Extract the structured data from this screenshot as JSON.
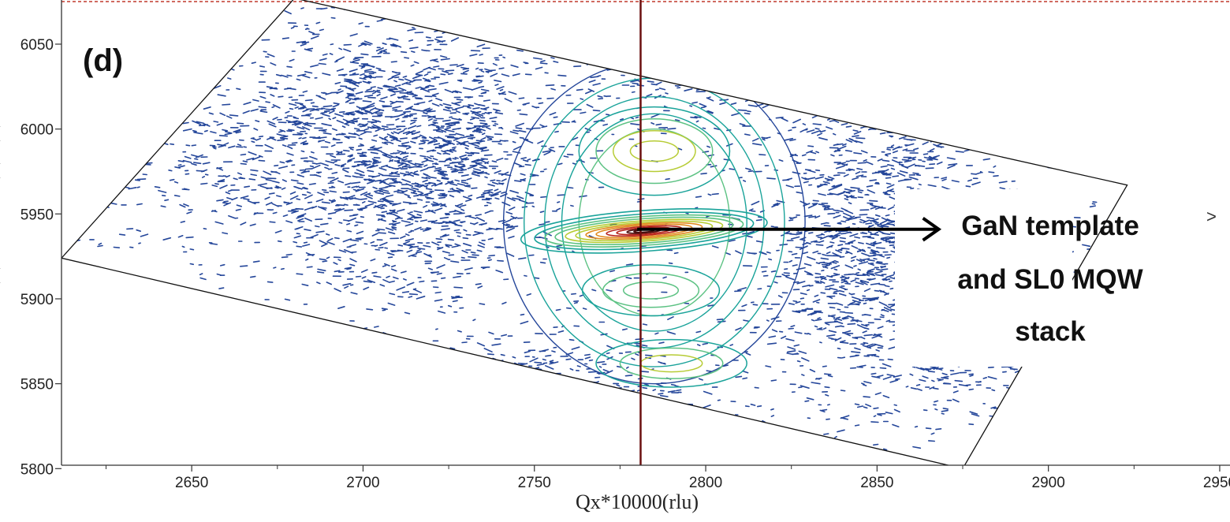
{
  "chart_data": {
    "type": "contour",
    "panel_label": "(d)",
    "xlabel": "Qx*10000(rlu)",
    "ylabel": "",
    "xlim": [
      2612,
      2953
    ],
    "ylim": [
      5802,
      6076
    ],
    "x_ticks": [
      2650,
      2700,
      2750,
      2800,
      2850,
      2900,
      2950
    ],
    "y_ticks": [
      5800,
      5850,
      5900,
      5950,
      6000,
      6050
    ],
    "x_tick_labels": [
      "2650",
      "2700",
      "2750",
      "2800",
      "2850",
      "2900",
      "2950"
    ],
    "y_tick_labels": [
      "5800",
      "5850",
      "5900",
      "5950",
      "6000",
      "6050"
    ],
    "reference_line_qx": 2781,
    "scan_region_corners": [
      [
        2612,
        5924
      ],
      [
        2680,
        6077
      ],
      [
        2923,
        5967
      ],
      [
        2875,
        5800
      ]
    ],
    "peaks": [
      {
        "qx": 2783,
        "qz": 5941,
        "level": "max",
        "description": "main peak"
      },
      {
        "qx": 2785,
        "qz": 5987,
        "level": "high"
      },
      {
        "qx": 2784,
        "qz": 5905,
        "level": "mid"
      },
      {
        "qx": 2790,
        "qz": 5862,
        "level": "mid"
      }
    ],
    "annotation": {
      "lines": [
        "GaN template",
        "and SL0 MQW",
        "stack"
      ],
      "arrow_from": [
        2780,
        5941
      ],
      "arrow_to": [
        2868,
        5941
      ]
    },
    "colors": {
      "noise": "#24469a",
      "low": "#1aa39a",
      "mid": "#5cc283",
      "high": "#b7cc36",
      "peak_orange": "#e08a1e",
      "peak_red": "#b8251c",
      "peak_dark": "#4a0f0f",
      "reference_line": "#6b0f0f",
      "frame": "#c0392b"
    }
  }
}
